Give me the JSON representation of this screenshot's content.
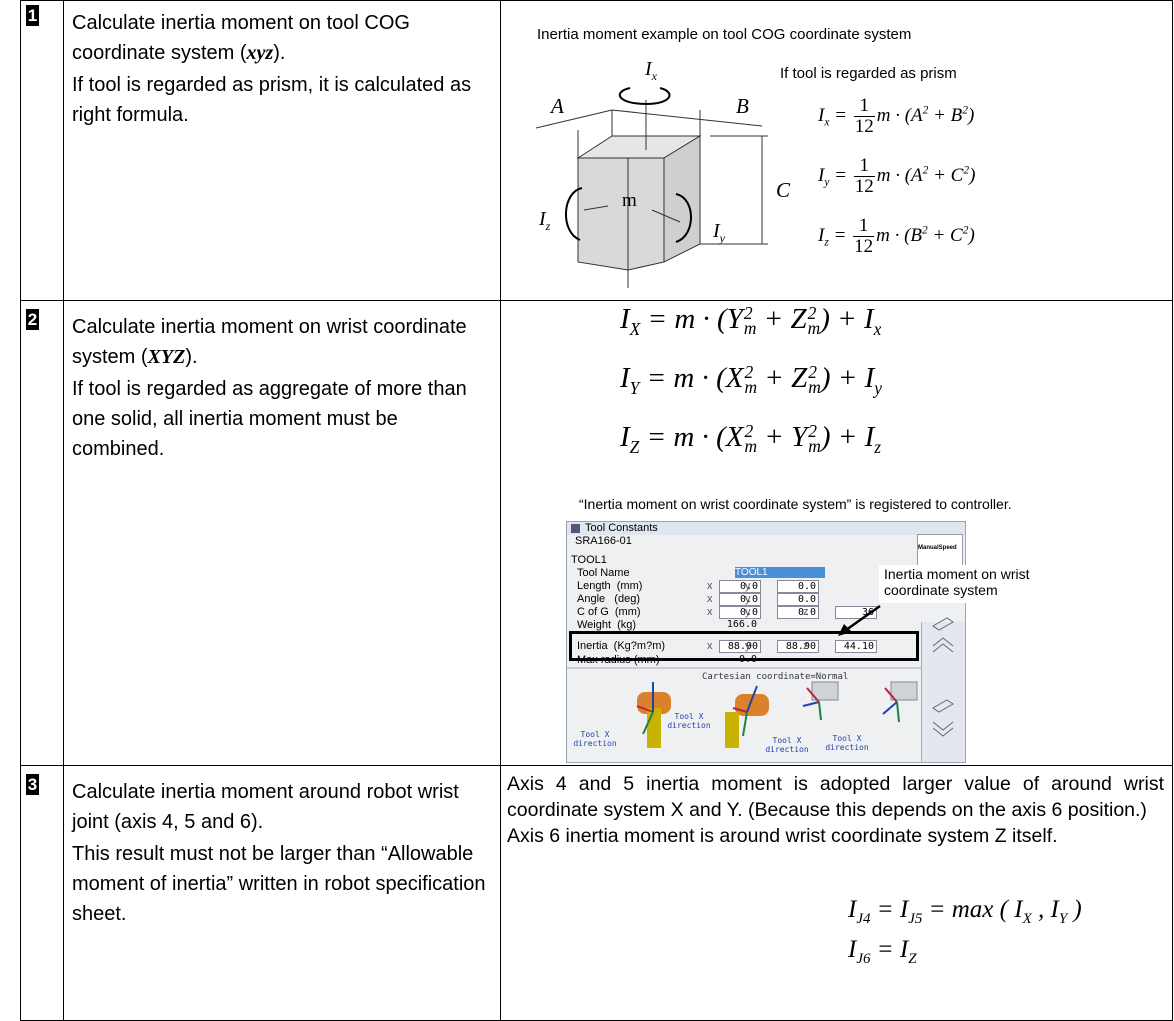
{
  "rows": [
    {
      "number": "1",
      "description": [
        [
          {
            "t": "Calculate inertia moment on tool COG coordinate system ("
          },
          {
            "t": "xyz",
            "italic": true
          },
          {
            "t": ")."
          }
        ],
        [
          {
            "t": "If tool is regarded as prism, it is calculated as right formula."
          }
        ]
      ],
      "caption": "Inertia moment example on tool COG coordinate system",
      "formula_heading": "If tool is regarded as prism",
      "diagram_labels": {
        "a": "A",
        "b": "B",
        "c": "C",
        "m": "m"
      },
      "moment_labels": {
        "ix": [
          {
            "t": "I",
            "sub": "x"
          }
        ],
        "iy": [
          {
            "t": "I",
            "sub": "y"
          }
        ],
        "iz": [
          {
            "t": "I",
            "sub": "z"
          }
        ]
      },
      "formulas": [
        [
          {
            "t": "I",
            "sub": "x"
          },
          {
            "t": " = "
          },
          {
            "num": "1",
            "den": "12"
          },
          {
            "t": "m · ("
          },
          {
            "t": "A",
            "sup": "2"
          },
          {
            "t": " + "
          },
          {
            "t": "B",
            "sup": "2"
          },
          {
            "t": ")"
          }
        ],
        [
          {
            "t": "I",
            "sub": "y"
          },
          {
            "t": " = "
          },
          {
            "num": "1",
            "den": "12"
          },
          {
            "t": "m · ("
          },
          {
            "t": "A",
            "sup": "2"
          },
          {
            "t": " + "
          },
          {
            "t": "C",
            "sup": "2"
          },
          {
            "t": ")"
          }
        ],
        [
          {
            "t": "I",
            "sub": "z"
          },
          {
            "t": " = "
          },
          {
            "num": "1",
            "den": "12"
          },
          {
            "t": "m · ("
          },
          {
            "t": "B",
            "sup": "2"
          },
          {
            "t": " + "
          },
          {
            "t": "C",
            "sup": "2"
          },
          {
            "t": ")"
          }
        ]
      ]
    },
    {
      "number": "2",
      "description": [
        [
          {
            "t": "Calculate inertia moment on wrist coordinate system ("
          },
          {
            "t": "XYZ",
            "italic": true
          },
          {
            "t": ")."
          }
        ],
        [
          {
            "t": "If tool is regarded as aggregate of more than one solid, all inertia moment must be combined."
          }
        ]
      ],
      "formulas": [
        [
          {
            "t": "I",
            "sub": "X"
          },
          {
            "t": " = m · ("
          },
          {
            "t": "Y",
            "sub": "m",
            "sup": "2"
          },
          {
            "t": " + "
          },
          {
            "t": "Z",
            "sub": "m",
            "sup": "2"
          },
          {
            "t": ") + "
          },
          {
            "t": "I",
            "sub": "x"
          }
        ],
        [
          {
            "t": "I",
            "sub": "Y"
          },
          {
            "t": " = m · ("
          },
          {
            "t": "X",
            "sub": "m",
            "sup": "2"
          },
          {
            "t": " + "
          },
          {
            "t": "Z",
            "sub": "m",
            "sup": "2"
          },
          {
            "t": ") + "
          },
          {
            "t": "I",
            "sub": "y"
          }
        ],
        [
          {
            "t": "I",
            "sub": "Z"
          },
          {
            "t": " = m · ("
          },
          {
            "t": "X",
            "sub": "m",
            "sup": "2"
          },
          {
            "t": " + "
          },
          {
            "t": "Y",
            "sub": "m",
            "sup": "2"
          },
          {
            "t": ") + "
          },
          {
            "t": "I",
            "sub": "z"
          }
        ]
      ],
      "caption": "“Inertia moment on wrist coordinate system” is registered to controller.",
      "screenshot": {
        "window_title": "Tool Constants",
        "robot": "SRA166-01",
        "tool": "TOOL1",
        "speed": "ManualSpeed",
        "tool_name_label": "Tool Name",
        "tool_name_value": "TOOL1",
        "axes": [
          "x",
          "y",
          "z"
        ],
        "fields": [
          {
            "label": "Length  (mm)",
            "values": [
              "0.0",
              "0.0"
            ]
          },
          {
            "label": "Angle   (deg)",
            "values": [
              "0.0",
              "0.0"
            ]
          },
          {
            "label": "C of G  (mm)",
            "values": [
              "0.0",
              "0.0",
              "36"
            ]
          },
          {
            "label": "Weight  (kg)",
            "values": [
              "166.0"
            ]
          },
          {
            "label": "Inertia  (Kg?m?m)",
            "values": [
              "88.90",
              "88.90",
              "44.10"
            ]
          },
          {
            "label": "Max radius (mm)",
            "values": [
              "0.0"
            ]
          }
        ],
        "view_caption": "Cartesian coordinate=Normal",
        "direction_labels": [
          "Tool X direction",
          "Tool X direction",
          "Tool X direction",
          "Tool X direction"
        ],
        "annotation": "Inertia moment on wrist coordinate system"
      }
    },
    {
      "number": "3",
      "description": [
        [
          {
            "t": "Calculate inertia moment around robot wrist joint (axis 4, 5 and 6)."
          }
        ],
        [
          {
            "t": "This result must not be larger than “Allowable moment of inertia” written in robot specification sheet."
          }
        ]
      ],
      "explanation": [
        "Axis 4 and 5 inertia moment is adopted larger value of around wrist coordinate system X and Y. (Because this depends on the axis 6 position.)",
        "Axis 6 inertia moment is around wrist coordinate system Z itself."
      ],
      "formulas": [
        [
          {
            "t": "I",
            "sub": "J4"
          },
          {
            "t": " = "
          },
          {
            "t": "I",
            "sub": "J5"
          },
          {
            "t": " = max ( "
          },
          {
            "t": "I",
            "sub": "X"
          },
          {
            "t": " , "
          },
          {
            "t": "I",
            "sub": "Y"
          },
          {
            "t": " )"
          }
        ],
        [
          {
            "t": "I",
            "sub": "J6"
          },
          {
            "t": " = "
          },
          {
            "t": "I",
            "sub": "Z"
          }
        ]
      ]
    }
  ]
}
